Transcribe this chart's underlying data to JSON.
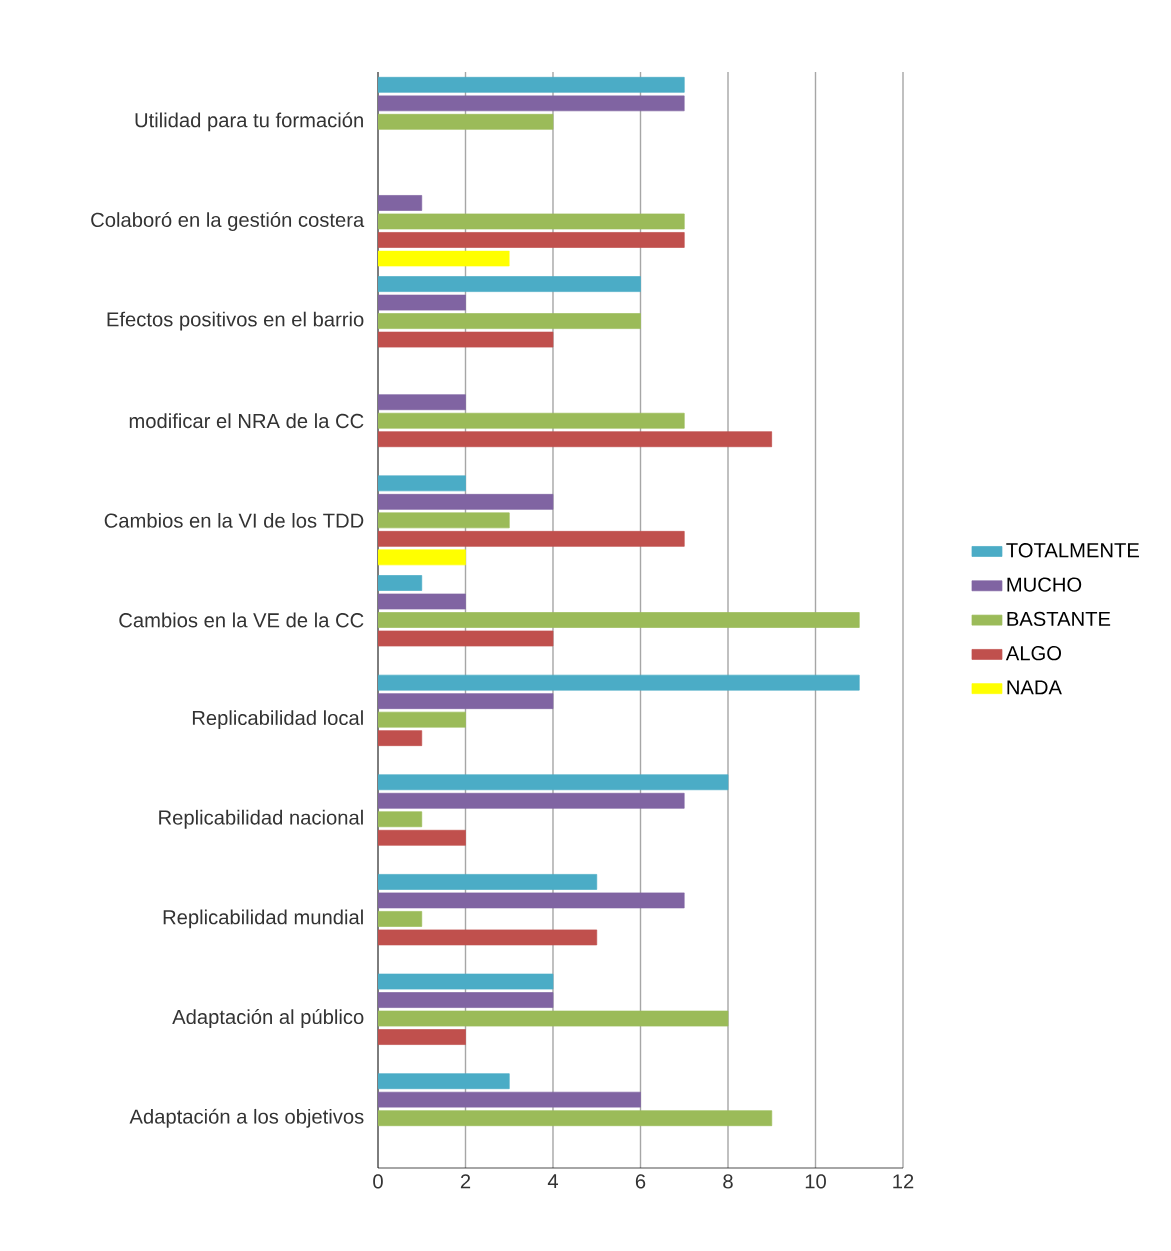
{
  "chart_data": {
    "type": "bar",
    "orientation": "horizontal",
    "categories": [
      "Utilidad para tu formación",
      "Colaboró en la gestión costera",
      "Efectos positivos en el barrio",
      "modificar el NRA de la CC",
      "Cambios en la VI de los TDD",
      "Cambios en  la VE de la CC",
      "Replicabilidad local",
      "Replicabilidad nacional",
      "Replicabilidad mundial",
      "Adaptación al público",
      "Adaptación a los objetivos"
    ],
    "series": [
      {
        "name": "TOTALMENTE",
        "color": "#4bacc6",
        "values": [
          7,
          0,
          6,
          0,
          2,
          1,
          11,
          8,
          5,
          4,
          3
        ]
      },
      {
        "name": "MUCHO",
        "color": "#8064a2",
        "values": [
          7,
          1,
          2,
          2,
          4,
          2,
          4,
          7,
          7,
          4,
          6
        ]
      },
      {
        "name": "BASTANTE",
        "color": "#9bbb59",
        "values": [
          4,
          7,
          6,
          7,
          3,
          11,
          2,
          1,
          1,
          8,
          9
        ]
      },
      {
        "name": "ALGO",
        "color": "#c0504d",
        "values": [
          0,
          7,
          4,
          9,
          7,
          4,
          1,
          2,
          5,
          2,
          0
        ]
      },
      {
        "name": "NADA",
        "color": "#ffff00",
        "values": [
          0,
          3,
          0,
          0,
          2,
          0,
          0,
          0,
          0,
          0,
          0
        ]
      }
    ],
    "xlim": [
      0,
      12
    ],
    "xticks": [
      0,
      2,
      4,
      6,
      8,
      10,
      12
    ],
    "grid": "x",
    "legend": "right"
  }
}
